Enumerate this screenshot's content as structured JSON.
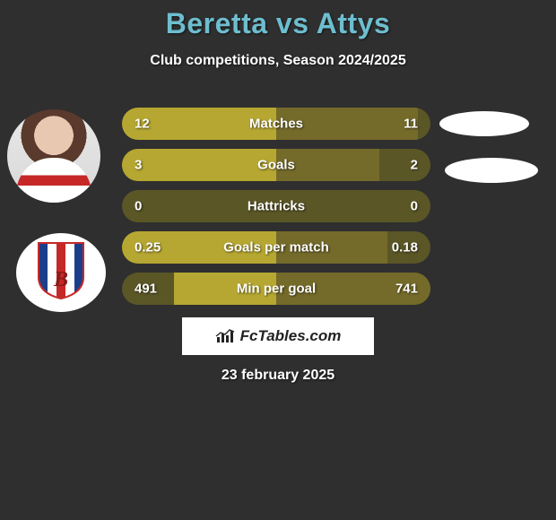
{
  "title": "Beretta vs Attys",
  "subtitle": "Club competitions, Season 2024/2025",
  "date": "23 february 2025",
  "branding": {
    "text": "FcTables.com"
  },
  "colors": {
    "background": "#2f2f2f",
    "title_color": "#6dbecf",
    "text_color": "#ffffff",
    "bar_track": "#5a5626",
    "bar_left": "#b6a732",
    "bar_right": "#746a2a",
    "blob": "#ffffff"
  },
  "club_shield": {
    "stripe_colors": [
      "#1a3f8a",
      "#ffffff",
      "#c62828",
      "#ffffff",
      "#1a3f8a"
    ],
    "letter": "B",
    "letter_color": "#8a1a1a",
    "outline": "#c62828"
  },
  "stats": [
    {
      "label": "Matches",
      "left_value": "12",
      "right_value": "11",
      "left_pct": 100,
      "right_pct": 92
    },
    {
      "label": "Goals",
      "left_value": "3",
      "right_value": "2",
      "left_pct": 100,
      "right_pct": 67
    },
    {
      "label": "Hattricks",
      "left_value": "0",
      "right_value": "0",
      "left_pct": 0,
      "right_pct": 0
    },
    {
      "label": "Goals per match",
      "left_value": "0.25",
      "right_value": "0.18",
      "left_pct": 100,
      "right_pct": 72
    },
    {
      "label": "Min per goal",
      "left_value": "491",
      "right_value": "741",
      "left_pct": 66,
      "right_pct": 100
    }
  ]
}
